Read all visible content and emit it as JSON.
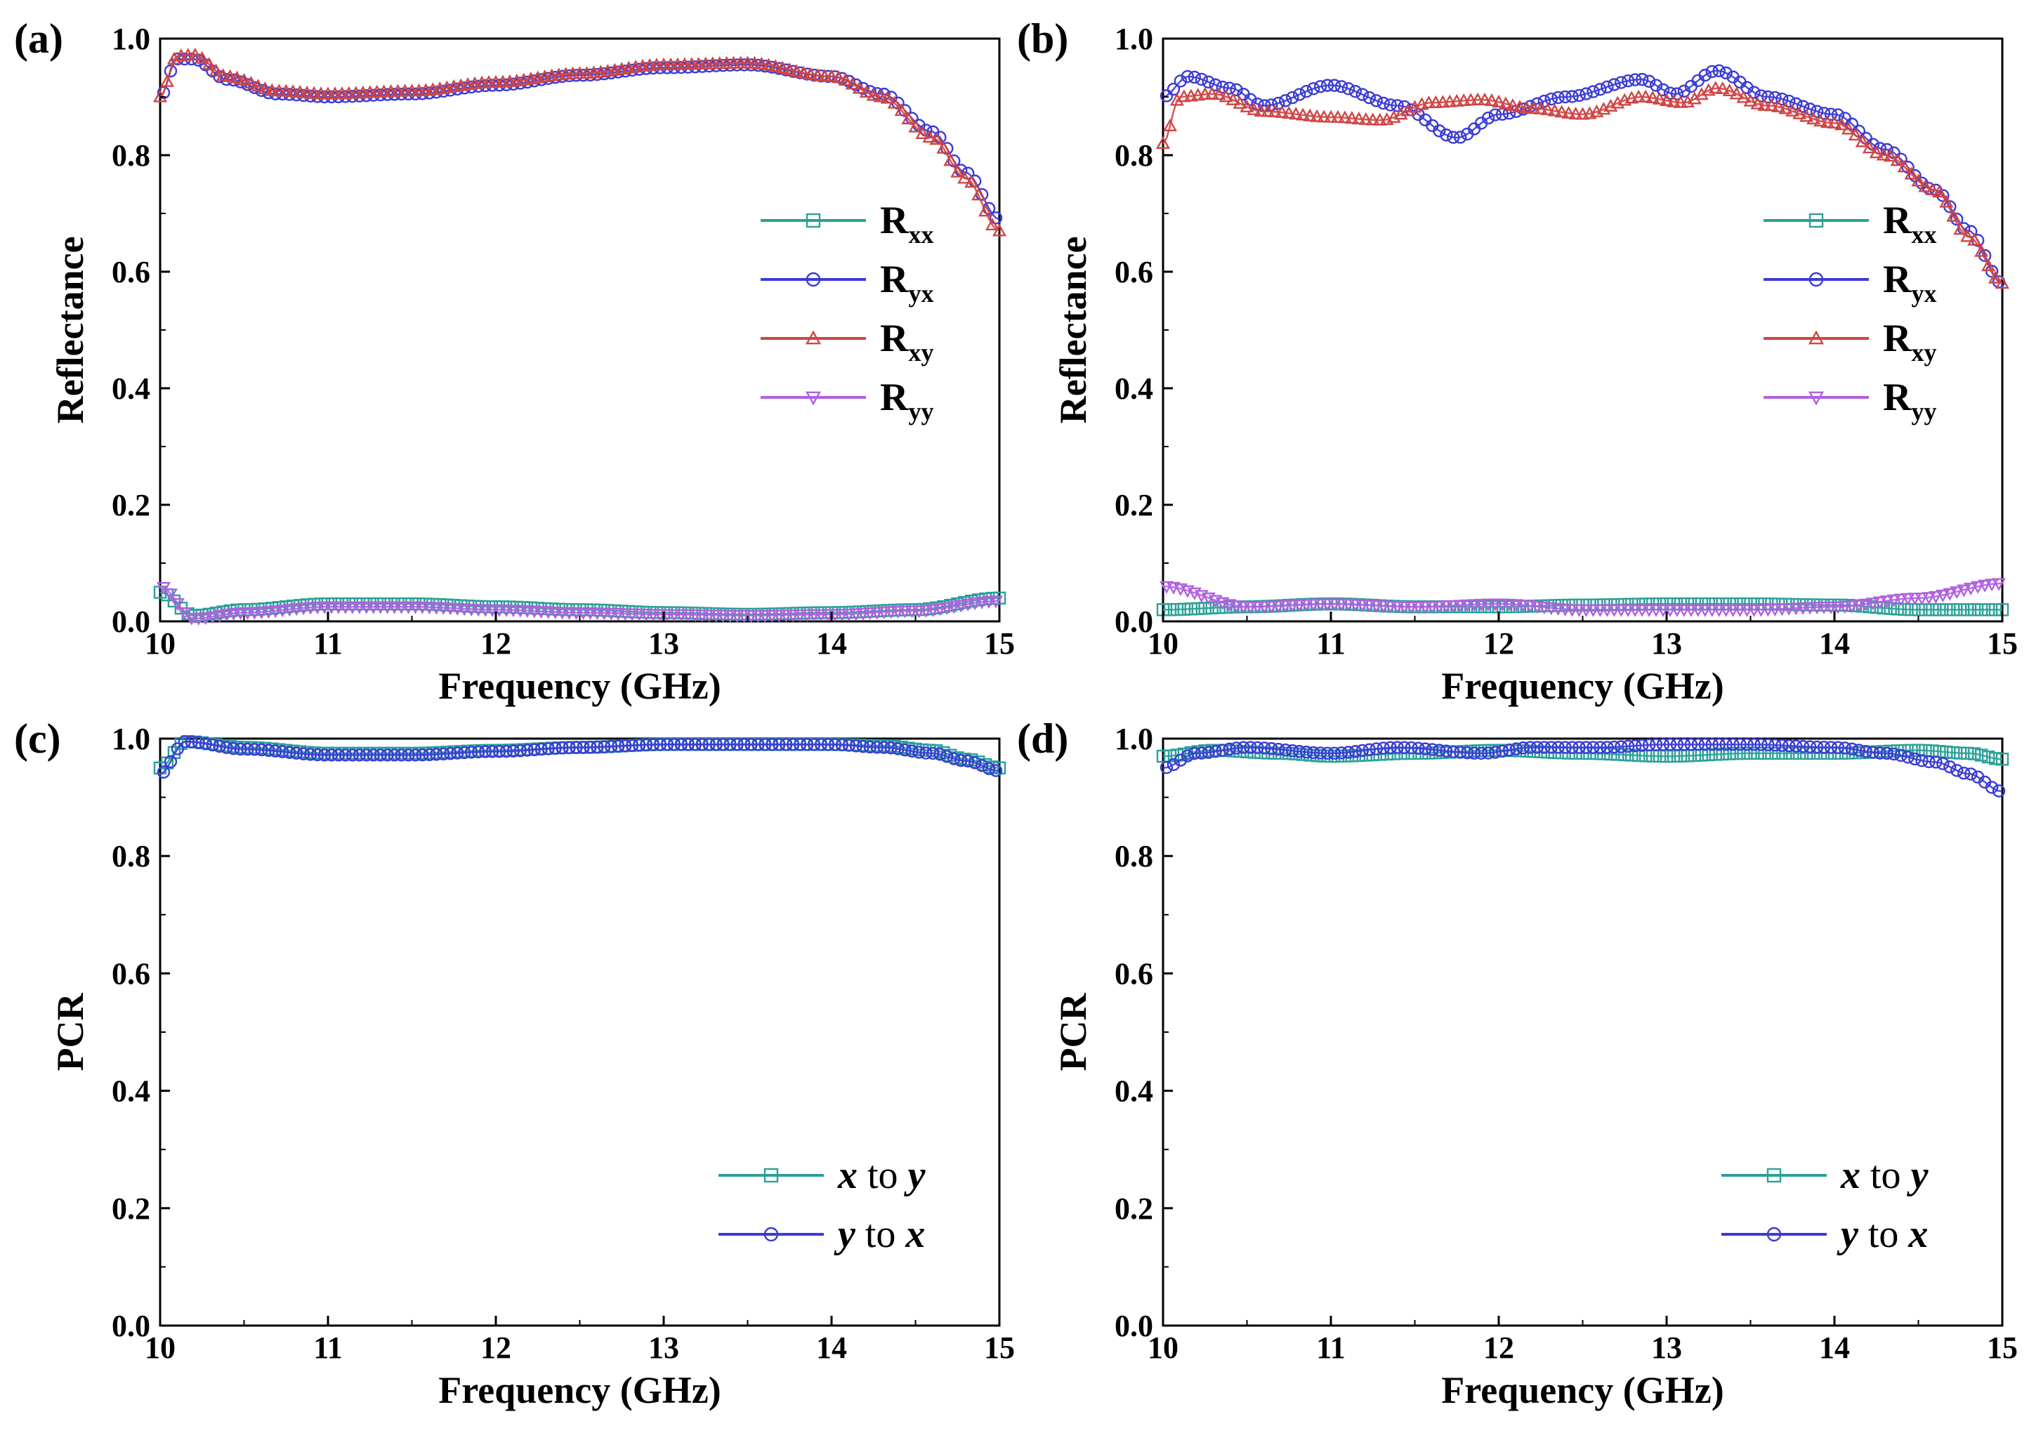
{
  "chart_data": [
    {
      "panel": "(a)",
      "type": "scatter",
      "xlabel": "Frequency (GHz)",
      "ylabel": "Reflectance",
      "xlim": [
        10,
        15
      ],
      "ylim": [
        0.0,
        1.0
      ],
      "xticks": [
        "10",
        "11",
        "12",
        "13",
        "14",
        "15"
      ],
      "yticks": [
        "0.0",
        "0.2",
        "0.4",
        "0.6",
        "0.8",
        "1.0"
      ],
      "legend_position": "right-middle",
      "series": [
        {
          "name": "R",
          "sub": "xx",
          "color": "#2aa198",
          "marker": "square",
          "x": [
            10.0,
            10.2,
            10.5,
            11.0,
            11.5,
            12.0,
            12.5,
            13.0,
            13.5,
            14.0,
            14.5,
            15.0
          ],
          "y": [
            0.05,
            0.01,
            0.02,
            0.03,
            0.03,
            0.025,
            0.02,
            0.015,
            0.012,
            0.015,
            0.02,
            0.04
          ]
        },
        {
          "name": "R",
          "sub": "yx",
          "color": "#3b3bd6",
          "marker": "circle",
          "x": [
            10.0,
            10.1,
            10.2,
            10.4,
            10.7,
            11.0,
            11.5,
            12.0,
            12.5,
            13.0,
            13.5,
            14.0,
            14.3,
            14.6,
            14.8,
            15.0
          ],
          "y": [
            0.9,
            0.965,
            0.965,
            0.93,
            0.905,
            0.9,
            0.905,
            0.92,
            0.937,
            0.95,
            0.955,
            0.935,
            0.905,
            0.84,
            0.77,
            0.69
          ]
        },
        {
          "name": "R",
          "sub": "xy",
          "color": "#d04545",
          "marker": "triangle-up",
          "x": [
            10.0,
            10.1,
            10.2,
            10.4,
            10.7,
            11.0,
            11.5,
            12.0,
            12.5,
            13.0,
            13.5,
            14.0,
            14.3,
            14.6,
            14.8,
            15.0
          ],
          "y": [
            0.9,
            0.97,
            0.972,
            0.935,
            0.91,
            0.905,
            0.91,
            0.925,
            0.94,
            0.955,
            0.958,
            0.935,
            0.9,
            0.83,
            0.76,
            0.67
          ]
        },
        {
          "name": "R",
          "sub": "yy",
          "color": "#b060e0",
          "marker": "triangle-down",
          "x": [
            10.0,
            10.2,
            10.5,
            11.0,
            11.5,
            12.0,
            12.5,
            13.0,
            13.5,
            14.0,
            14.5,
            15.0
          ],
          "y": [
            0.06,
            0.005,
            0.015,
            0.025,
            0.025,
            0.02,
            0.015,
            0.012,
            0.01,
            0.012,
            0.018,
            0.035
          ]
        }
      ]
    },
    {
      "panel": "(b)",
      "type": "scatter",
      "xlabel": "Frequency (GHz)",
      "ylabel": "Reflectance",
      "xlim": [
        10,
        15
      ],
      "ylim": [
        0.0,
        1.0
      ],
      "xticks": [
        "10",
        "11",
        "12",
        "13",
        "14",
        "15"
      ],
      "yticks": [
        "0.0",
        "0.2",
        "0.4",
        "0.6",
        "0.8",
        "1.0"
      ],
      "legend_position": "right-middle",
      "series": [
        {
          "name": "R",
          "sub": "xx",
          "color": "#2aa198",
          "marker": "square",
          "x": [
            10.0,
            10.5,
            11.0,
            11.5,
            12.0,
            12.5,
            13.0,
            13.5,
            14.0,
            14.5,
            15.0
          ],
          "y": [
            0.02,
            0.025,
            0.03,
            0.025,
            0.025,
            0.028,
            0.03,
            0.03,
            0.028,
            0.02,
            0.02
          ]
        },
        {
          "name": "R",
          "sub": "yx",
          "color": "#3b3bd6",
          "marker": "circle",
          "x": [
            10.0,
            10.15,
            10.4,
            10.6,
            11.0,
            11.4,
            11.75,
            12.0,
            12.4,
            12.85,
            13.05,
            13.3,
            13.6,
            14.0,
            14.3,
            14.6,
            14.8,
            15.0
          ],
          "y": [
            0.9,
            0.935,
            0.915,
            0.885,
            0.92,
            0.885,
            0.83,
            0.87,
            0.9,
            0.93,
            0.905,
            0.945,
            0.9,
            0.87,
            0.81,
            0.74,
            0.67,
            0.58
          ]
        },
        {
          "name": "R",
          "sub": "xy",
          "color": "#d04545",
          "marker": "triangle-up",
          "x": [
            10.0,
            10.1,
            10.3,
            10.6,
            11.0,
            11.3,
            11.6,
            11.9,
            12.2,
            12.5,
            12.85,
            13.1,
            13.3,
            13.6,
            14.0,
            14.3,
            14.6,
            14.8,
            15.0
          ],
          "y": [
            0.82,
            0.9,
            0.905,
            0.875,
            0.865,
            0.86,
            0.89,
            0.895,
            0.88,
            0.87,
            0.9,
            0.89,
            0.915,
            0.885,
            0.855,
            0.8,
            0.74,
            0.66,
            0.58
          ]
        },
        {
          "name": "R",
          "sub": "yy",
          "color": "#b060e0",
          "marker": "triangle-down",
          "x": [
            10.0,
            10.5,
            11.0,
            11.5,
            12.0,
            12.5,
            13.0,
            13.5,
            14.0,
            14.5,
            15.0
          ],
          "y": [
            0.06,
            0.025,
            0.03,
            0.025,
            0.03,
            0.02,
            0.02,
            0.02,
            0.025,
            0.04,
            0.065
          ]
        }
      ]
    },
    {
      "panel": "(c)",
      "type": "scatter",
      "xlabel": "Frequency (GHz)",
      "ylabel": "PCR",
      "xlim": [
        10,
        15
      ],
      "ylim": [
        0.0,
        1.0
      ],
      "xticks": [
        "10",
        "11",
        "12",
        "13",
        "14",
        "15"
      ],
      "yticks": [
        "0.0",
        "0.2",
        "0.4",
        "0.6",
        "0.8",
        "1.0"
      ],
      "legend_position": "bottom-right",
      "series": [
        {
          "name": "x to y",
          "color": "#2aa198",
          "marker": "square",
          "x": [
            10.0,
            10.15,
            10.5,
            11.0,
            11.5,
            12.0,
            12.5,
            13.0,
            13.5,
            14.0,
            14.3,
            14.6,
            14.8,
            15.0
          ],
          "y": [
            0.95,
            0.995,
            0.985,
            0.975,
            0.975,
            0.98,
            0.985,
            0.99,
            0.99,
            0.99,
            0.988,
            0.98,
            0.965,
            0.95
          ]
        },
        {
          "name": "y to x",
          "color": "#3b3bd6",
          "marker": "circle",
          "x": [
            10.0,
            10.15,
            10.5,
            11.0,
            11.5,
            12.0,
            12.5,
            13.0,
            13.5,
            14.0,
            14.3,
            14.6,
            14.8,
            15.0
          ],
          "y": [
            0.94,
            0.995,
            0.982,
            0.972,
            0.972,
            0.978,
            0.985,
            0.99,
            0.99,
            0.99,
            0.985,
            0.975,
            0.962,
            0.945
          ]
        }
      ]
    },
    {
      "panel": "(d)",
      "type": "scatter",
      "xlabel": "Frequency (GHz)",
      "ylabel": "PCR",
      "xlim": [
        10,
        15
      ],
      "ylim": [
        0.0,
        1.0
      ],
      "xticks": [
        "10",
        "11",
        "12",
        "13",
        "14",
        "15"
      ],
      "yticks": [
        "0.0",
        "0.2",
        "0.4",
        "0.6",
        "0.8",
        "1.0"
      ],
      "legend_position": "bottom-right",
      "series": [
        {
          "name": "x to y",
          "color": "#2aa198",
          "marker": "square",
          "x": [
            10.0,
            10.3,
            10.7,
            11.0,
            11.5,
            12.0,
            12.5,
            13.0,
            13.5,
            14.0,
            14.5,
            14.8,
            15.0
          ],
          "y": [
            0.97,
            0.98,
            0.975,
            0.97,
            0.975,
            0.98,
            0.975,
            0.97,
            0.975,
            0.975,
            0.98,
            0.975,
            0.965
          ]
        },
        {
          "name": "y to x",
          "color": "#3b3bd6",
          "marker": "circle",
          "x": [
            10.0,
            10.2,
            10.5,
            11.0,
            11.4,
            11.9,
            12.2,
            12.6,
            13.0,
            13.5,
            14.0,
            14.3,
            14.6,
            14.8,
            15.0
          ],
          "y": [
            0.95,
            0.975,
            0.985,
            0.975,
            0.985,
            0.975,
            0.985,
            0.985,
            0.99,
            0.99,
            0.985,
            0.975,
            0.96,
            0.94,
            0.91
          ]
        }
      ]
    }
  ]
}
